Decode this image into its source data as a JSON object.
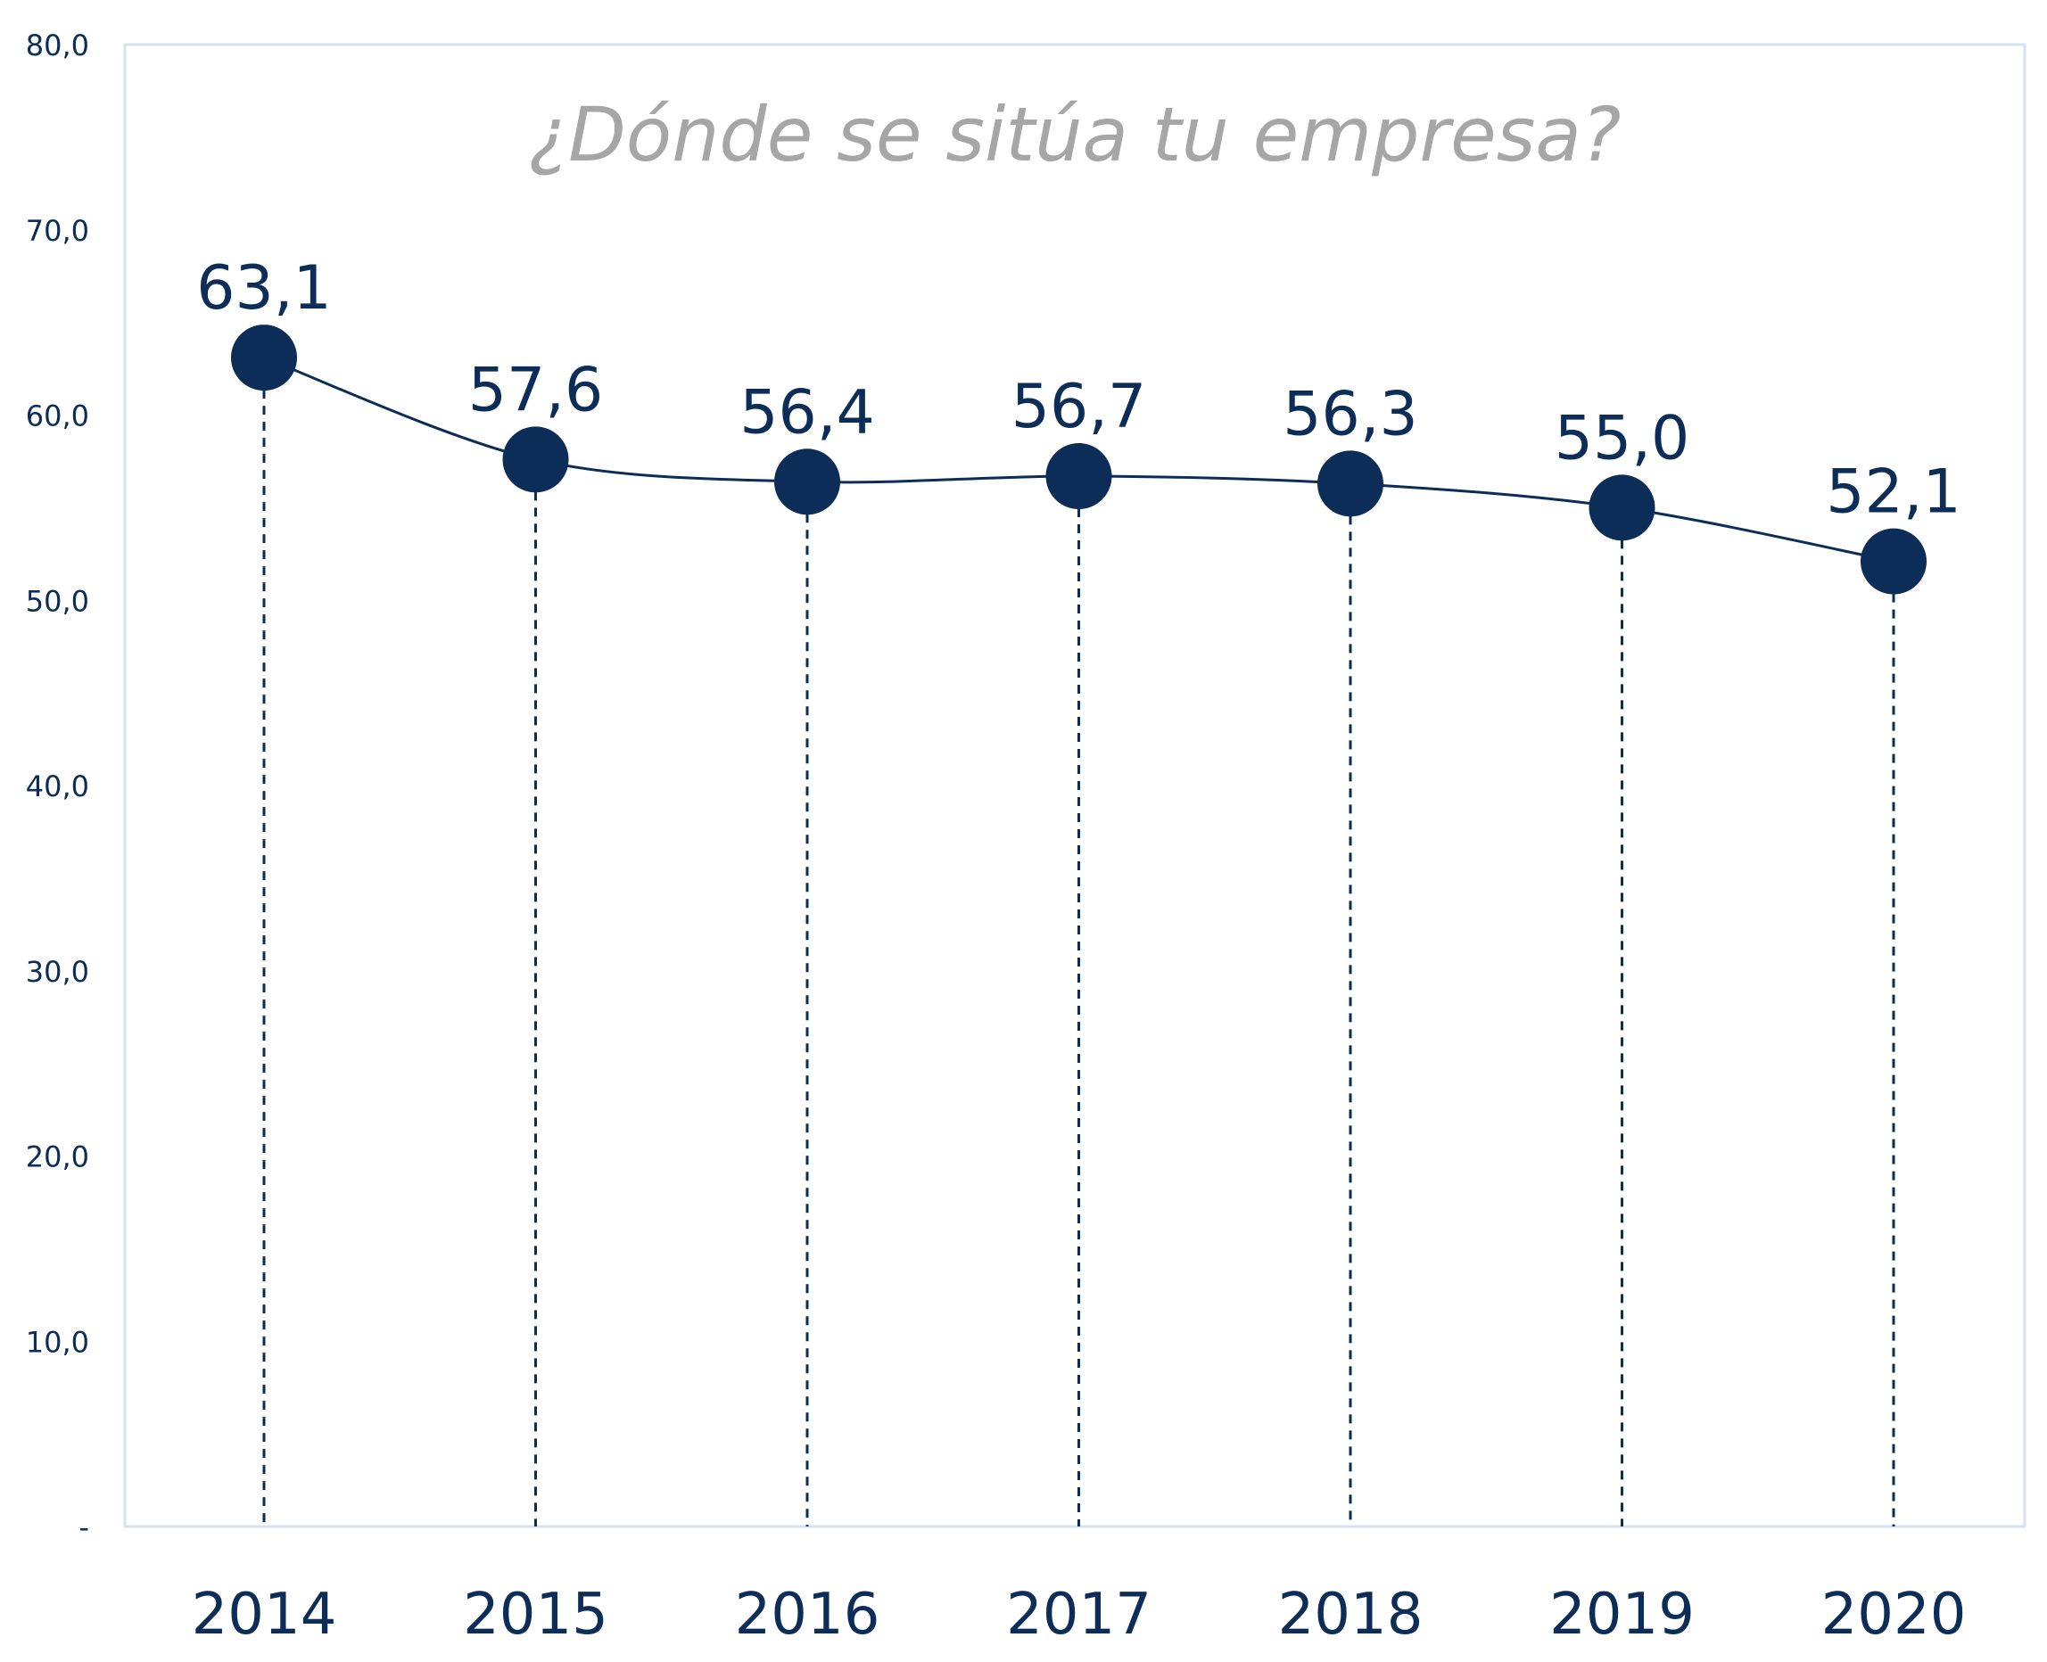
{
  "chart_data": {
    "type": "line",
    "title": "¿Dónde se sitúa tu empresa?",
    "xlabel": "",
    "ylabel": "",
    "categories": [
      "2014",
      "2015",
      "2016",
      "2017",
      "2018",
      "2019",
      "2020"
    ],
    "series": [
      {
        "values": [
          63.1,
          57.6,
          56.4,
          56.7,
          56.3,
          55.0,
          52.1
        ],
        "data_labels": [
          "63,1",
          "57,6",
          "56,4",
          "56,7",
          "56,3",
          "55,0",
          "52,1"
        ]
      }
    ],
    "ylim": [
      0,
      80
    ],
    "yticks": [
      0,
      10,
      20,
      30,
      40,
      50,
      60,
      70,
      80
    ],
    "ytick_labels": [
      "-",
      "10,0",
      "20,0",
      "30,0",
      "40,0",
      "50,0",
      "60,0",
      "70,0",
      "80,0"
    ],
    "grid": false,
    "drop_lines": "dashed",
    "smooth_line": true,
    "marker": "circle",
    "legend": "none",
    "colors": {
      "series": "#0b2d57",
      "title": "#a6a6a6",
      "axis_text": "#0b2d57",
      "plot_border": "#d6e2ee"
    }
  }
}
